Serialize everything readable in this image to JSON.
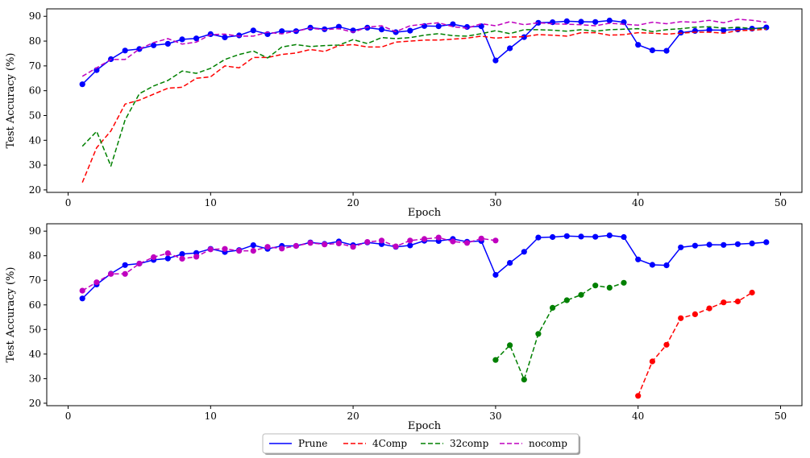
{
  "chart_data": [
    {
      "type": "line",
      "xlabel": "Epoch",
      "ylabel": "Test Accuracy (%)",
      "xlim": [
        -1.5,
        51.5
      ],
      "ylim": [
        19,
        93
      ],
      "xticks": [
        0,
        10,
        20,
        30,
        40,
        50
      ],
      "yticks": [
        20,
        30,
        40,
        50,
        60,
        70,
        80,
        90
      ],
      "series": [
        {
          "name": "Prune",
          "color": "#0000ff",
          "dashed": false,
          "markers": true,
          "x": [
            1,
            2,
            3,
            4,
            5,
            6,
            7,
            8,
            9,
            10,
            11,
            12,
            13,
            14,
            15,
            16,
            17,
            18,
            19,
            20,
            21,
            22,
            23,
            24,
            25,
            26,
            27,
            28,
            29,
            30,
            31,
            32,
            33,
            34,
            35,
            36,
            37,
            38,
            39,
            40,
            41,
            42,
            43,
            44,
            45,
            46,
            47,
            48,
            49
          ],
          "y": [
            62.6,
            68.3,
            72.7,
            76.2,
            76.8,
            78.3,
            78.9,
            80.7,
            81.1,
            82.8,
            81.5,
            82.3,
            84.3,
            82.8,
            84.0,
            84.0,
            85.4,
            84.8,
            85.8,
            84.3,
            85.4,
            84.7,
            83.6,
            84.2,
            86.1,
            86.0,
            86.8,
            85.7,
            86.0,
            72.2,
            77.1,
            81.6,
            87.4,
            87.6,
            88.0,
            87.8,
            87.7,
            88.3,
            87.6,
            78.5,
            76.3,
            76.1,
            83.4,
            84.1,
            84.5,
            84.4,
            84.7,
            85.0,
            85.5
          ]
        },
        {
          "name": "4Comp",
          "color": "#ff0000",
          "dashed": true,
          "markers": false,
          "x": [
            1,
            2,
            3,
            4,
            5,
            6,
            7,
            8,
            9,
            10,
            11,
            12,
            13,
            14,
            15,
            16,
            17,
            18,
            19,
            20,
            21,
            22,
            23,
            24,
            25,
            26,
            27,
            28,
            29,
            30,
            31,
            32,
            33,
            34,
            35,
            36,
            37,
            38,
            39,
            40,
            41,
            42,
            43,
            44,
            45,
            46,
            47,
            48,
            49
          ],
          "y": [
            23.0,
            37.0,
            43.8,
            54.6,
            56.2,
            58.6,
            61.0,
            61.4,
            65.0,
            65.6,
            70.0,
            69.2,
            73.4,
            73.4,
            74.6,
            75.2,
            76.6,
            75.8,
            78.2,
            78.6,
            77.6,
            77.6,
            79.6,
            80.0,
            80.4,
            80.4,
            80.8,
            81.2,
            82.0,
            81.2,
            81.6,
            81.8,
            82.6,
            82.4,
            82.0,
            83.4,
            83.4,
            82.4,
            82.6,
            83.4,
            83.2,
            82.8,
            83.2,
            83.6,
            83.6,
            83.2,
            84.2,
            84.4,
            84.8
          ]
        },
        {
          "name": "32comp",
          "color": "#008000",
          "dashed": true,
          "markers": false,
          "x": [
            1,
            2,
            3,
            4,
            5,
            6,
            7,
            8,
            9,
            10,
            11,
            12,
            13,
            14,
            15,
            16,
            17,
            18,
            19,
            20,
            21,
            22,
            23,
            24,
            25,
            26,
            27,
            28,
            29,
            30,
            31,
            32,
            33,
            34,
            35,
            36,
            37,
            38,
            39,
            40,
            41,
            42,
            43,
            44,
            45,
            46,
            47,
            48,
            49
          ],
          "y": [
            37.6,
            43.6,
            29.6,
            48.2,
            58.8,
            61.9,
            64.1,
            67.9,
            67.0,
            69.0,
            72.6,
            74.6,
            76.0,
            73.2,
            77.6,
            78.6,
            77.8,
            78.2,
            78.4,
            80.6,
            79.0,
            81.4,
            81.0,
            81.4,
            82.4,
            83.0,
            82.2,
            82.0,
            83.0,
            84.2,
            83.0,
            84.6,
            84.6,
            84.4,
            84.0,
            84.6,
            84.0,
            84.6,
            84.8,
            85.0,
            83.8,
            84.6,
            85.0,
            85.6,
            85.8,
            85.2,
            85.6,
            85.0,
            85.2
          ]
        },
        {
          "name": "nocomp",
          "color": "#bf00bf",
          "dashed": true,
          "markers": false,
          "x": [
            1,
            2,
            3,
            4,
            5,
            6,
            7,
            8,
            9,
            10,
            11,
            12,
            13,
            14,
            15,
            16,
            17,
            18,
            19,
            20,
            21,
            22,
            23,
            24,
            25,
            26,
            27,
            28,
            29,
            30,
            31,
            32,
            33,
            34,
            35,
            36,
            37,
            38,
            39,
            40,
            41,
            42,
            43,
            44,
            45,
            46,
            47,
            48,
            49
          ],
          "y": [
            65.8,
            69.2,
            72.6,
            72.6,
            76.8,
            79.4,
            81.0,
            78.8,
            79.6,
            82.6,
            82.8,
            82.0,
            82.0,
            83.6,
            82.9,
            84.0,
            85.2,
            84.6,
            85.0,
            83.6,
            85.6,
            86.2,
            83.8,
            86.2,
            86.8,
            87.4,
            85.8,
            85.2,
            87.0,
            86.2,
            87.8,
            86.6,
            87.4,
            87.0,
            86.8,
            86.6,
            86.2,
            87.2,
            86.8,
            86.4,
            87.6,
            87.0,
            87.8,
            87.6,
            88.4,
            87.4,
            88.8,
            88.4,
            87.6
          ]
        }
      ]
    },
    {
      "type": "line",
      "xlabel": "Epoch",
      "ylabel": "Test Accuracy (%)",
      "xlim": [
        -1.5,
        51.5
      ],
      "ylim": [
        19,
        93
      ],
      "xticks": [
        0,
        10,
        20,
        30,
        40,
        50
      ],
      "yticks": [
        20,
        30,
        40,
        50,
        60,
        70,
        80,
        90
      ],
      "series": [
        {
          "name": "Prune",
          "color": "#0000ff",
          "dashed": false,
          "markers": true,
          "x": [
            1,
            2,
            3,
            4,
            5,
            6,
            7,
            8,
            9,
            10,
            11,
            12,
            13,
            14,
            15,
            16,
            17,
            18,
            19,
            20,
            21,
            22,
            23,
            24,
            25,
            26,
            27,
            28,
            29,
            30,
            31,
            32,
            33,
            34,
            35,
            36,
            37,
            38,
            39,
            40,
            41,
            42,
            43,
            44,
            45,
            46,
            47,
            48,
            49
          ],
          "y": [
            62.6,
            68.3,
            72.7,
            76.2,
            76.8,
            78.3,
            78.9,
            80.7,
            81.1,
            82.8,
            81.5,
            82.3,
            84.3,
            82.8,
            84.0,
            84.0,
            85.4,
            84.8,
            85.8,
            84.3,
            85.4,
            84.7,
            83.6,
            84.2,
            86.1,
            86.0,
            86.8,
            85.7,
            86.0,
            72.2,
            77.1,
            81.6,
            87.4,
            87.6,
            88.0,
            87.8,
            87.7,
            88.3,
            87.6,
            78.5,
            76.3,
            76.1,
            83.4,
            84.1,
            84.5,
            84.4,
            84.7,
            85.0,
            85.5
          ]
        },
        {
          "name": "4Comp",
          "color": "#ff0000",
          "dashed": true,
          "markers": true,
          "x": [
            40,
            41,
            42,
            43,
            44,
            45,
            46,
            47,
            48
          ],
          "y": [
            23.0,
            37.0,
            43.8,
            54.6,
            56.2,
            58.6,
            61.0,
            61.4,
            65.0
          ]
        },
        {
          "name": "32comp",
          "color": "#008000",
          "dashed": true,
          "markers": true,
          "x": [
            30,
            31,
            32,
            33,
            34,
            35,
            36,
            37,
            38,
            39
          ],
          "y": [
            37.6,
            43.6,
            29.6,
            48.2,
            58.8,
            61.9,
            64.1,
            67.9,
            67.0,
            69.0
          ]
        },
        {
          "name": "nocomp",
          "color": "#bf00bf",
          "dashed": true,
          "markers": true,
          "x": [
            1,
            2,
            3,
            4,
            5,
            6,
            7,
            8,
            9,
            10,
            11,
            12,
            13,
            14,
            15,
            16,
            17,
            18,
            19,
            20,
            21,
            22,
            23,
            24,
            25,
            26,
            27,
            28,
            29,
            30
          ],
          "y": [
            65.8,
            69.2,
            72.6,
            72.6,
            76.8,
            79.4,
            81.0,
            78.8,
            79.6,
            82.6,
            82.8,
            82.0,
            82.0,
            83.6,
            82.9,
            84.0,
            85.2,
            84.6,
            85.0,
            83.6,
            85.6,
            86.2,
            83.8,
            86.2,
            86.8,
            87.4,
            85.8,
            85.2,
            87.0,
            86.2
          ]
        }
      ]
    }
  ],
  "legend": {
    "placement": "bottom-center",
    "entries": [
      {
        "label": "Prune",
        "color": "#0000ff",
        "dashed": false
      },
      {
        "label": "4Comp",
        "color": "#ff0000",
        "dashed": true
      },
      {
        "label": "32comp",
        "color": "#008000",
        "dashed": true
      },
      {
        "label": "nocomp",
        "color": "#bf00bf",
        "dashed": true
      }
    ]
  }
}
